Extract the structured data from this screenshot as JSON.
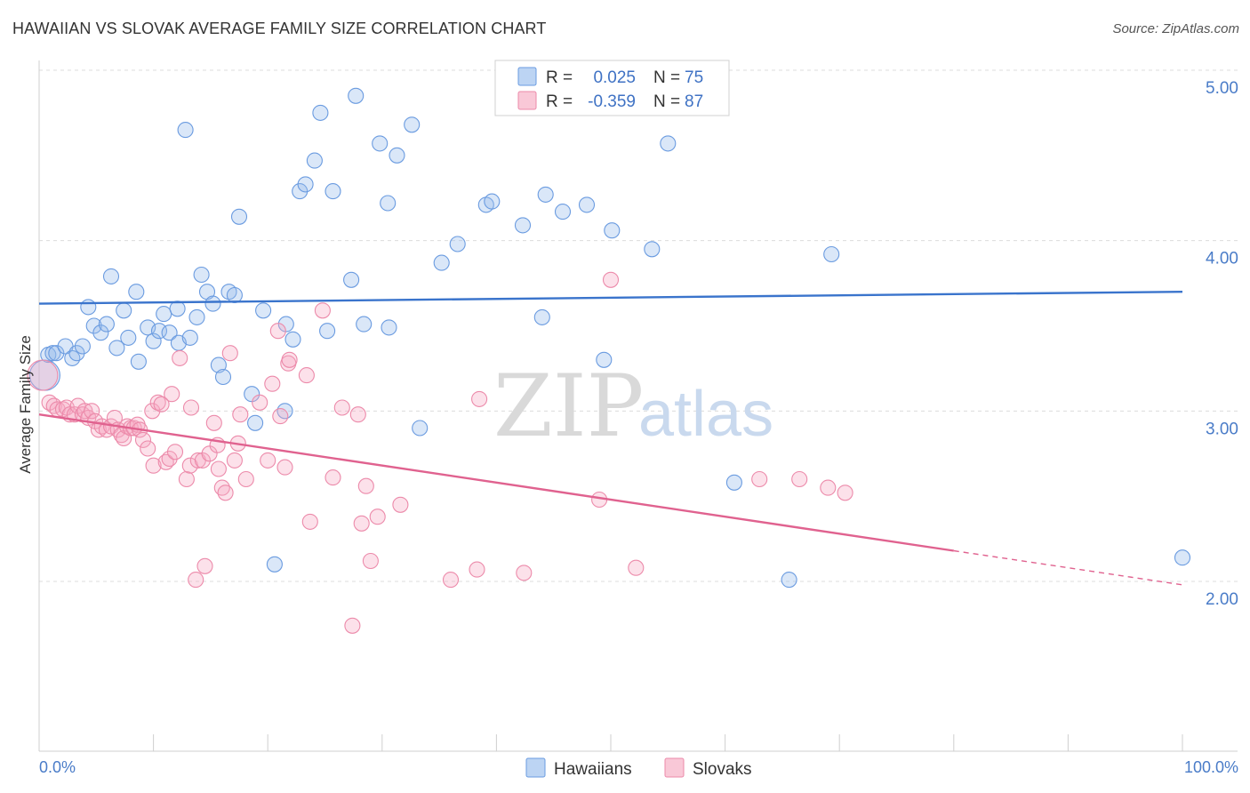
{
  "header": {
    "title": "HAWAIIAN VS SLOVAK AVERAGE FAMILY SIZE CORRELATION CHART",
    "source": "Source: ZipAtlas.com"
  },
  "watermark": {
    "zip": "ZIP",
    "atlas": "atlas"
  },
  "legend": {
    "r_label": "R =",
    "n_label": "N =",
    "items": [
      {
        "r": "0.025",
        "n": "75",
        "color": "#6a9be0",
        "fill": "#bcd4f3"
      },
      {
        "r": "-0.359",
        "n": "87",
        "color": "#ec8aaa",
        "fill": "#f9c8d7"
      }
    ]
  },
  "bottom_legend": [
    {
      "label": "Hawaiians",
      "color": "#6a9be0",
      "fill": "#bcd4f3"
    },
    {
      "label": "Slovaks",
      "color": "#ec8aaa",
      "fill": "#f9c8d7"
    }
  ],
  "chart_data": {
    "type": "scatter",
    "title": "HAWAIIAN VS SLOVAK AVERAGE FAMILY SIZE CORRELATION CHART",
    "xlabel": "",
    "ylabel": "Average Family Size",
    "xlim": [
      0,
      100
    ],
    "ylim": [
      1.0,
      5.1
    ],
    "x_tick_labels": [
      "0.0%",
      "100.0%"
    ],
    "y_ticks": [
      2.0,
      3.0,
      4.0,
      5.0
    ],
    "y_tick_labels": [
      "2.00",
      "3.00",
      "4.00",
      "5.00"
    ],
    "grid": "horizontal dashed",
    "legend_position": "top-center",
    "series": [
      {
        "name": "Hawaiians",
        "color": "#5b8fdb",
        "trend": {
          "x": [
            0,
            100
          ],
          "y": [
            3.63,
            3.7
          ],
          "color": "#3a74cc"
        },
        "points": [
          [
            0.5,
            3.21
          ],
          [
            0.8,
            3.33
          ],
          [
            1.2,
            3.34
          ],
          [
            1.5,
            3.34
          ],
          [
            2.3,
            3.38
          ],
          [
            2.9,
            3.31
          ],
          [
            3.3,
            3.34
          ],
          [
            3.8,
            3.38
          ],
          [
            4.3,
            3.61
          ],
          [
            4.8,
            3.5
          ],
          [
            5.4,
            3.46
          ],
          [
            5.9,
            3.51
          ],
          [
            6.3,
            3.79
          ],
          [
            6.8,
            3.37
          ],
          [
            7.4,
            3.59
          ],
          [
            7.8,
            3.43
          ],
          [
            8.5,
            3.7
          ],
          [
            8.7,
            3.29
          ],
          [
            9.5,
            3.49
          ],
          [
            10.0,
            3.41
          ],
          [
            10.5,
            3.47
          ],
          [
            10.9,
            3.57
          ],
          [
            11.4,
            3.46
          ],
          [
            12.1,
            3.6
          ],
          [
            12.2,
            3.4
          ],
          [
            12.8,
            4.65
          ],
          [
            13.2,
            3.43
          ],
          [
            13.8,
            3.55
          ],
          [
            14.2,
            3.8
          ],
          [
            14.7,
            3.7
          ],
          [
            15.2,
            3.63
          ],
          [
            15.7,
            3.27
          ],
          [
            16.1,
            3.2
          ],
          [
            16.6,
            3.7
          ],
          [
            17.1,
            3.68
          ],
          [
            17.5,
            4.14
          ],
          [
            18.6,
            3.1
          ],
          [
            18.9,
            2.93
          ],
          [
            19.6,
            3.59
          ],
          [
            20.6,
            2.1
          ],
          [
            21.5,
            3.0
          ],
          [
            21.6,
            3.51
          ],
          [
            22.2,
            3.42
          ],
          [
            22.8,
            4.29
          ],
          [
            23.3,
            4.33
          ],
          [
            24.1,
            4.47
          ],
          [
            24.6,
            4.75
          ],
          [
            25.2,
            3.47
          ],
          [
            25.7,
            4.29
          ],
          [
            27.3,
            3.77
          ],
          [
            27.7,
            4.85
          ],
          [
            28.4,
            3.51
          ],
          [
            29.8,
            4.57
          ],
          [
            30.5,
            4.22
          ],
          [
            30.6,
            3.49
          ],
          [
            31.3,
            4.5
          ],
          [
            32.6,
            4.68
          ],
          [
            33.3,
            2.9
          ],
          [
            35.2,
            3.87
          ],
          [
            36.6,
            3.98
          ],
          [
            39.1,
            4.21
          ],
          [
            39.6,
            4.23
          ],
          [
            42.3,
            4.09
          ],
          [
            44.0,
            3.55
          ],
          [
            44.3,
            4.27
          ],
          [
            45.8,
            4.17
          ],
          [
            47.9,
            4.21
          ],
          [
            49.4,
            3.3
          ],
          [
            50.1,
            4.06
          ],
          [
            53.6,
            3.95
          ],
          [
            55.0,
            4.57
          ],
          [
            60.8,
            2.58
          ],
          [
            69.3,
            3.92
          ],
          [
            65.6,
            2.01
          ],
          [
            100.0,
            2.14
          ]
        ]
      },
      {
        "name": "Slovaks",
        "color": "#e8779c",
        "trend": {
          "x": [
            0,
            80
          ],
          "y": [
            2.98,
            2.18
          ],
          "color": "#e0628f",
          "dashed_extension": {
            "x": [
              80,
              100
            ],
            "y": [
              2.18,
              1.98
            ]
          }
        },
        "points": [
          [
            0.3,
            3.21
          ],
          [
            0.9,
            3.05
          ],
          [
            1.3,
            3.03
          ],
          [
            1.6,
            3.01
          ],
          [
            2.1,
            3.01
          ],
          [
            2.4,
            3.02
          ],
          [
            2.7,
            2.98
          ],
          [
            3.1,
            2.98
          ],
          [
            3.4,
            3.03
          ],
          [
            3.8,
            2.98
          ],
          [
            4.0,
            3.0
          ],
          [
            4.3,
            2.96
          ],
          [
            4.6,
            3.0
          ],
          [
            4.9,
            2.94
          ],
          [
            5.2,
            2.89
          ],
          [
            5.5,
            2.91
          ],
          [
            5.9,
            2.89
          ],
          [
            6.3,
            2.91
          ],
          [
            6.6,
            2.96
          ],
          [
            6.9,
            2.89
          ],
          [
            7.2,
            2.86
          ],
          [
            7.4,
            2.84
          ],
          [
            7.7,
            2.91
          ],
          [
            8.0,
            2.9
          ],
          [
            8.3,
            2.9
          ],
          [
            8.6,
            2.92
          ],
          [
            8.8,
            2.89
          ],
          [
            9.1,
            2.83
          ],
          [
            9.5,
            2.78
          ],
          [
            9.9,
            3.0
          ],
          [
            10.0,
            2.68
          ],
          [
            10.4,
            3.05
          ],
          [
            10.7,
            3.04
          ],
          [
            11.1,
            2.7
          ],
          [
            11.4,
            2.72
          ],
          [
            11.6,
            3.1
          ],
          [
            11.9,
            2.76
          ],
          [
            12.3,
            3.31
          ],
          [
            12.9,
            2.6
          ],
          [
            13.2,
            2.68
          ],
          [
            13.3,
            3.02
          ],
          [
            13.7,
            2.01
          ],
          [
            13.9,
            2.71
          ],
          [
            14.3,
            2.71
          ],
          [
            14.5,
            2.09
          ],
          [
            14.9,
            2.75
          ],
          [
            15.3,
            2.93
          ],
          [
            15.6,
            2.8
          ],
          [
            15.7,
            2.66
          ],
          [
            16.0,
            2.55
          ],
          [
            16.3,
            2.52
          ],
          [
            16.7,
            3.34
          ],
          [
            17.1,
            2.71
          ],
          [
            17.4,
            2.81
          ],
          [
            17.6,
            2.98
          ],
          [
            18.1,
            2.6
          ],
          [
            19.3,
            3.05
          ],
          [
            20.0,
            2.71
          ],
          [
            20.4,
            3.16
          ],
          [
            20.9,
            3.47
          ],
          [
            21.1,
            2.97
          ],
          [
            21.5,
            2.67
          ],
          [
            21.8,
            3.28
          ],
          [
            21.9,
            3.3
          ],
          [
            23.4,
            3.21
          ],
          [
            23.7,
            2.35
          ],
          [
            24.8,
            3.59
          ],
          [
            25.7,
            2.61
          ],
          [
            26.5,
            3.02
          ],
          [
            27.4,
            1.74
          ],
          [
            27.9,
            2.98
          ],
          [
            28.2,
            2.34
          ],
          [
            28.6,
            2.56
          ],
          [
            29.0,
            2.12
          ],
          [
            29.6,
            2.38
          ],
          [
            31.6,
            2.45
          ],
          [
            36.0,
            2.01
          ],
          [
            38.3,
            2.07
          ],
          [
            38.5,
            3.07
          ],
          [
            42.4,
            2.05
          ],
          [
            49.0,
            2.48
          ],
          [
            50.0,
            3.77
          ],
          [
            52.2,
            2.08
          ],
          [
            63.0,
            2.6
          ],
          [
            66.5,
            2.6
          ],
          [
            69.0,
            2.55
          ],
          [
            70.5,
            2.52
          ]
        ]
      }
    ]
  }
}
